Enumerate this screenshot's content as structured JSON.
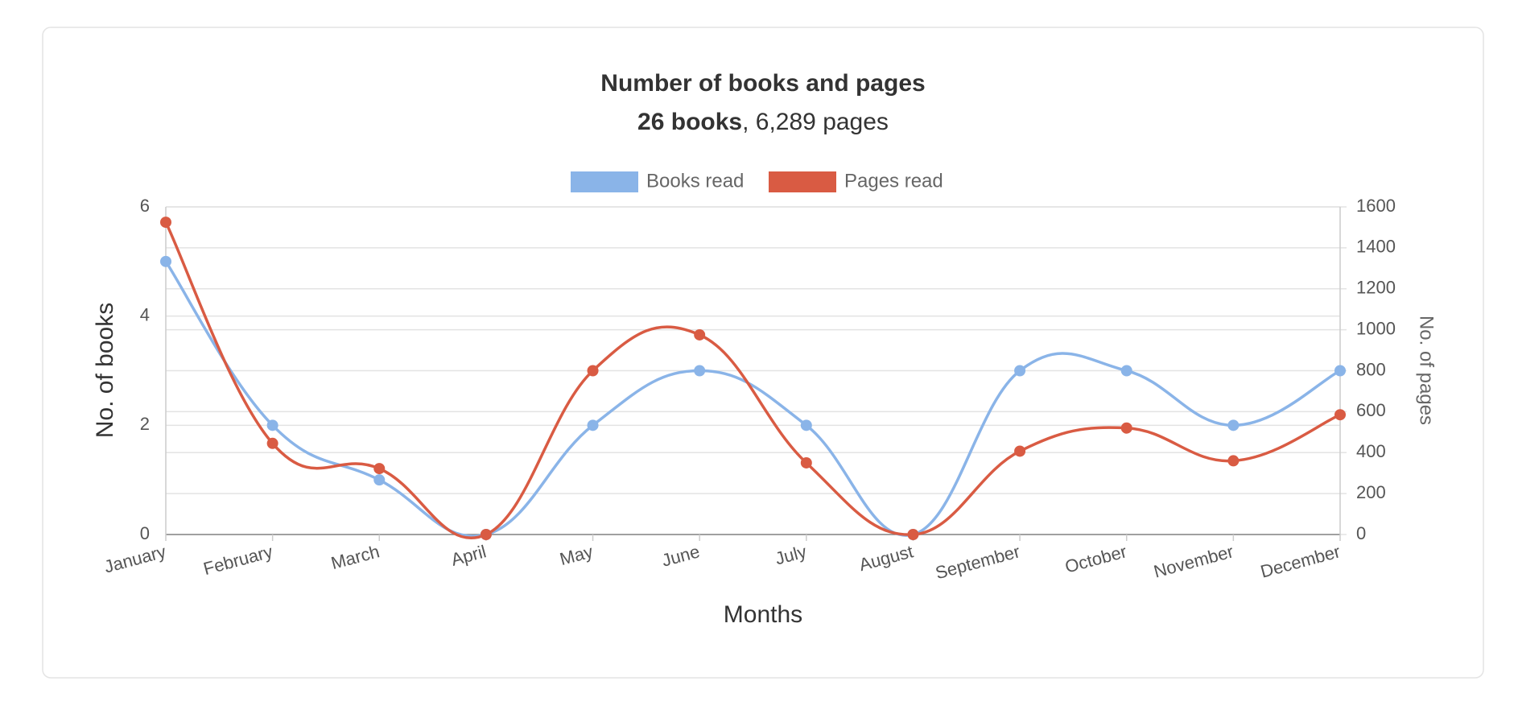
{
  "chart_data": {
    "type": "line",
    "title": "Number of books and pages",
    "subtitle_bold": "26 books",
    "subtitle_rest": ", 6,289 pages",
    "x_label": "Months",
    "y_label": "No. of books",
    "y2_label": "No. of pages",
    "categories": [
      "January",
      "February",
      "March",
      "April",
      "May",
      "June",
      "July",
      "August",
      "September",
      "October",
      "November",
      "December"
    ],
    "series": [
      {
        "name": "Books read",
        "color": "#8ab4e8",
        "values": [
          5,
          2,
          1,
          0,
          2,
          3,
          2,
          0,
          3,
          3,
          2,
          3
        ]
      },
      {
        "name": "Pages read",
        "color": "#d95b43",
        "axis": "y2",
        "values": [
          1525,
          445,
          322,
          0,
          800,
          975,
          350,
          0,
          407,
          520,
          360,
          585
        ]
      }
    ],
    "ylim": [
      0,
      6
    ],
    "yticks": [
      0,
      2,
      4,
      6
    ],
    "y2lim": [
      0,
      1600
    ],
    "y2ticks": [
      0,
      200,
      400,
      600,
      800,
      1000,
      1200,
      1400,
      1600
    ],
    "grid": true,
    "legend": "top"
  }
}
